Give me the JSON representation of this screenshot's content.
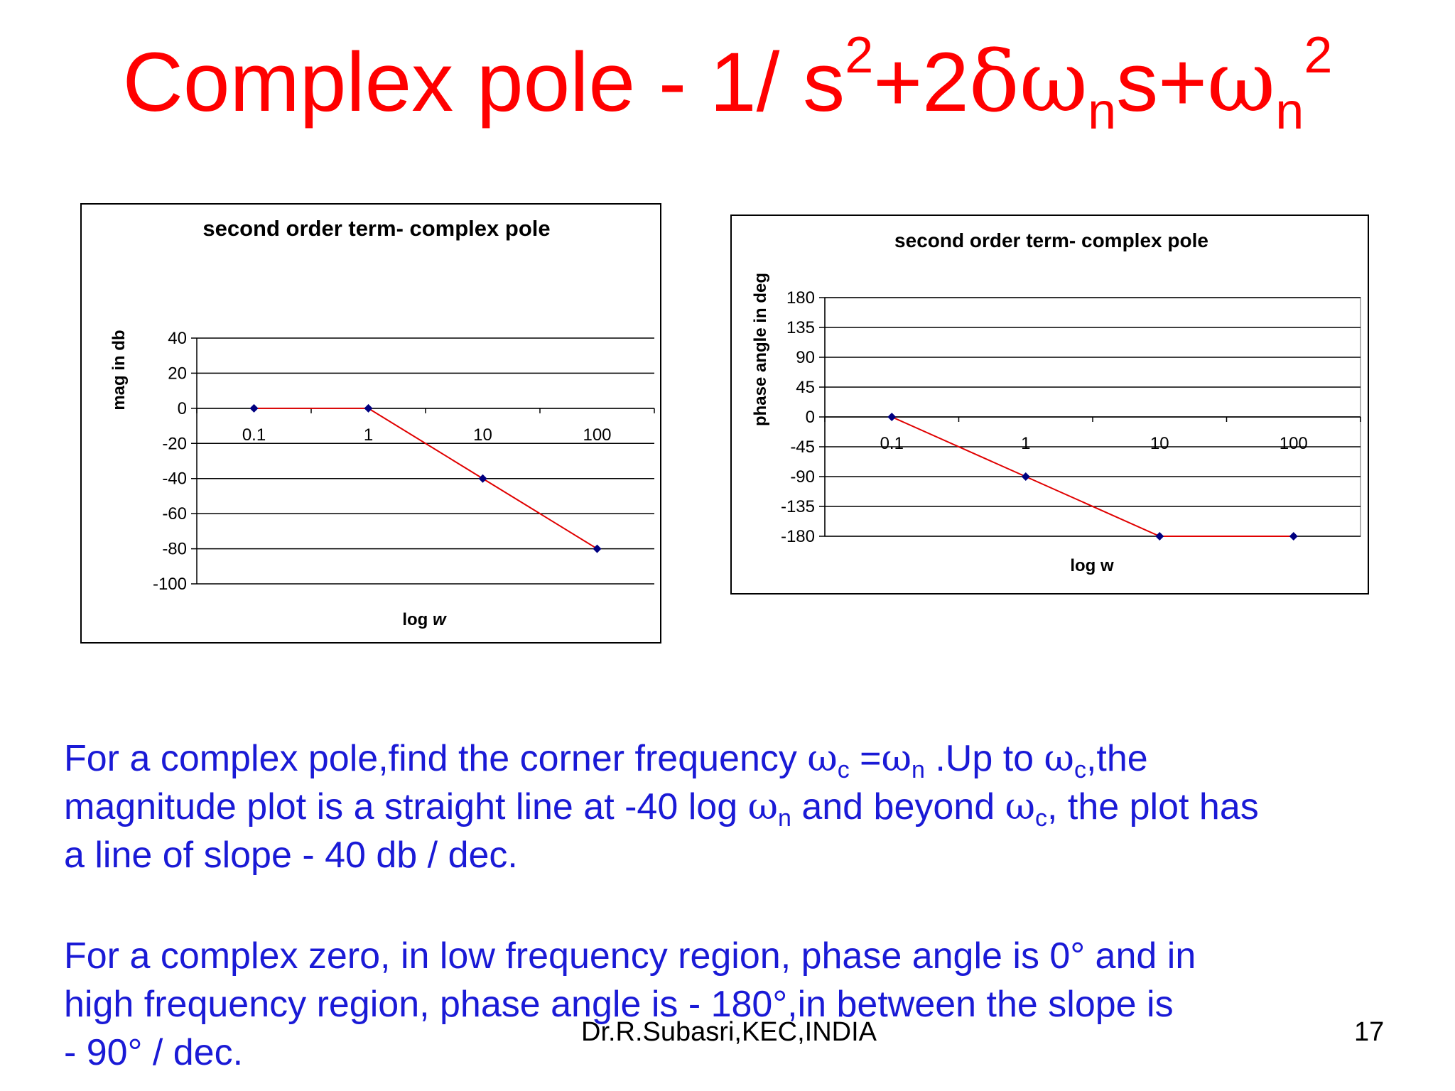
{
  "title": {
    "prefix": "Complex pole - 1/ s",
    "sup1": "2",
    "part2": "+2",
    "delta": "δ",
    "omega1": "ω",
    "sub1": "n",
    "part3": "s+",
    "omega2": "ω",
    "sub2": "n",
    "sup2": "2"
  },
  "paragraph1": {
    "t1": "For a complex pole,find the corner frequency ",
    "w1": "ω",
    "s1": "c",
    "t2": " =",
    "w2": "ω",
    "s2": "n",
    "t3": " .Up to ",
    "w3": "ω",
    "s3": "c",
    "t4": ",the",
    "t5": "magnitude plot is a straight line at -40 log ",
    "w4": "ω",
    "s4": "n",
    "t6": " and beyond ",
    "w5": "ω",
    "s5": "c",
    "t7": ", the plot has",
    "t8": "a line of slope  - 40 db / dec."
  },
  "paragraph2": {
    "line1": "For a complex zero, in low frequency region, phase angle is 0° and in",
    "line2": "high frequency region, phase angle is - 180°,in between the slope is",
    "line3": " - 90° / dec."
  },
  "footer": {
    "author": "Dr.R.Subasri,KEC,INDIA",
    "page": "17"
  },
  "chart_data": [
    {
      "type": "line",
      "title": "second order term- complex pole",
      "xlabel_prefix": "log ",
      "xlabel_var": "w",
      "ylabel": "mag in db",
      "categories": [
        "0.1",
        "1",
        "10",
        "100"
      ],
      "values": [
        0,
        0,
        -40,
        -80
      ],
      "ylim": [
        -100,
        40
      ],
      "yticks": [
        "40",
        "20",
        "0",
        "-20",
        "-40",
        "-60",
        "-80",
        "-100"
      ],
      "grid": true,
      "line_color": "#e00000",
      "marker_color": "#000080"
    },
    {
      "type": "line",
      "title": "second order term- complex pole",
      "xlabel": "log w",
      "ylabel": "phase angle in deg",
      "categories": [
        "0.1",
        "1",
        "10",
        "100"
      ],
      "values": [
        0,
        -90,
        -180,
        -180
      ],
      "ylim": [
        -180,
        180
      ],
      "yticks": [
        "180",
        "135",
        "90",
        "45",
        "0",
        "-45",
        "-90",
        "-135",
        "-180"
      ],
      "grid": true,
      "line_color": "#e00000",
      "marker_color": "#000080"
    }
  ]
}
